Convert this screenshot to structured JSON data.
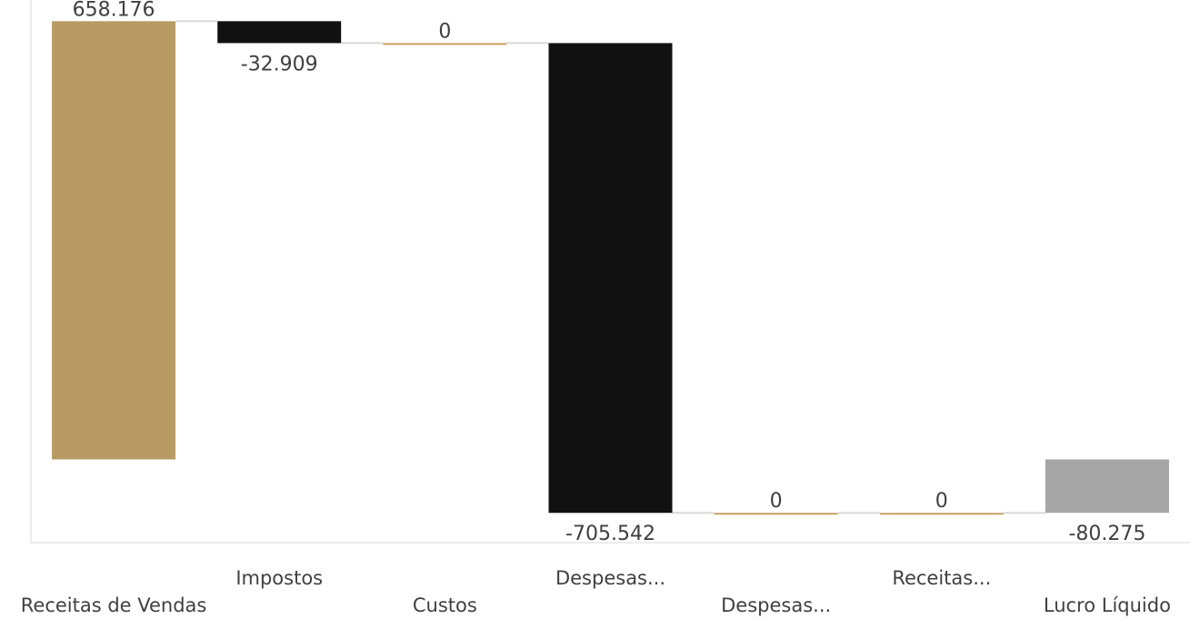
{
  "chart_data": {
    "type": "waterfall",
    "categories": [
      "Receitas de Vendas",
      "Impostos",
      "Custos",
      "Despesas...",
      "Despesas...",
      "Receitas...",
      "Lucro Líquido"
    ],
    "values": [
      658176,
      -32909,
      0,
      -705542,
      0,
      0,
      -80275
    ],
    "data_labels": [
      "658.176",
      "-32.909",
      "0",
      "-705.542",
      "0",
      "0",
      "-80.275"
    ],
    "total_index": 6,
    "ylim": [
      -125000,
      690000
    ],
    "grid": false,
    "legend": "none",
    "colors": {
      "increase": "#B89B64",
      "decrease": "#111111",
      "total": "#A6A6A6",
      "zero": "#C8A165",
      "connector": "#D9D9D9",
      "axis": "#D9D9D9",
      "text": "#404040"
    }
  }
}
